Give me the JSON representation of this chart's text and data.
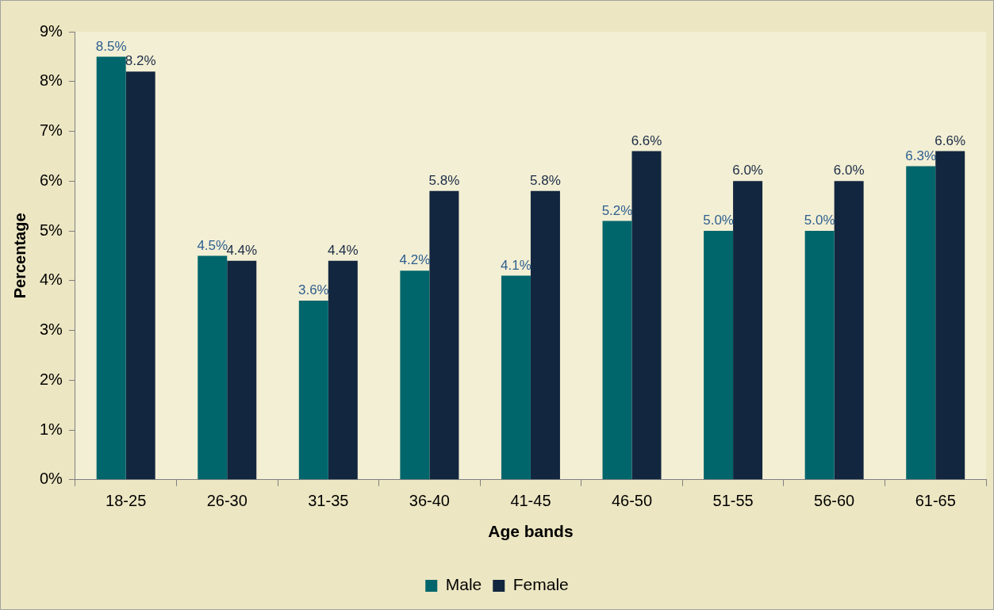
{
  "chart_data": {
    "type": "bar",
    "xlabel": "Age bands",
    "ylabel": "Percentage",
    "categories": [
      "18-25",
      "26-30",
      "31-35",
      "36-40",
      "41-45",
      "46-50",
      "51-55",
      "56-60",
      "61-65"
    ],
    "series": [
      {
        "name": "Male",
        "color": "#00666b",
        "values": [
          8.5,
          4.5,
          3.6,
          4.2,
          4.1,
          5.2,
          5.0,
          5.0,
          6.3
        ],
        "value_labels": [
          "8.5%",
          "4.5%",
          "3.6%",
          "4.2%",
          "4.1%",
          "5.2%",
          "5.0%",
          "5.0%",
          "6.3%"
        ]
      },
      {
        "name": "Female",
        "color": "#13263f",
        "values": [
          8.2,
          4.4,
          4.4,
          5.8,
          5.8,
          6.6,
          6.0,
          6.0,
          6.6
        ],
        "value_labels": [
          "8.2%",
          "4.4%",
          "4.4%",
          "5.8%",
          "5.8%",
          "6.6%",
          "6.0%",
          "6.0%",
          "6.6%"
        ]
      }
    ],
    "ylim": [
      0,
      9
    ],
    "yticks": [
      {
        "value": 0,
        "label": "0%"
      },
      {
        "value": 1,
        "label": "1%"
      },
      {
        "value": 2,
        "label": "2%"
      },
      {
        "value": 3,
        "label": "3%"
      },
      {
        "value": 4,
        "label": "4%"
      },
      {
        "value": 5,
        "label": "5%"
      },
      {
        "value": 6,
        "label": "6%"
      },
      {
        "value": 7,
        "label": "7%"
      },
      {
        "value": 8,
        "label": "8%"
      },
      {
        "value": 9,
        "label": "9%"
      }
    ],
    "grid": false,
    "legend": "bottom"
  }
}
